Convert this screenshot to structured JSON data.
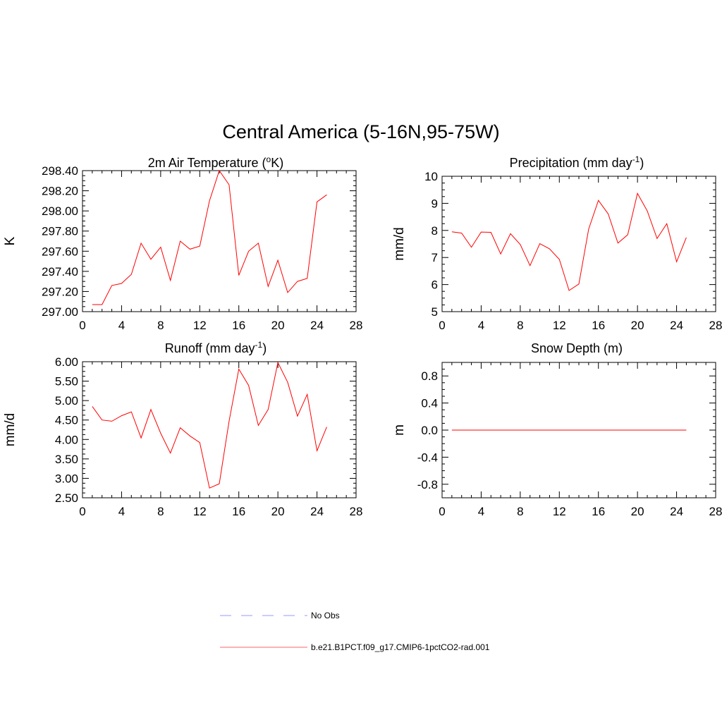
{
  "title": "Central America (5-16N,95-75W)",
  "legend": [
    {
      "label": "No Obs",
      "color": "#9999ff",
      "dash": true
    },
    {
      "label": "b.e21.B1PCT.f09_g17.CMIP6-1pctCO2-rad.001",
      "color": "#ff6666",
      "dash": false
    }
  ],
  "chart_data": [
    {
      "type": "line",
      "title_text": "2m Air Temperature (",
      "title_sup": "o",
      "title_tail": "K)",
      "ylabel": "K",
      "xlim": [
        0,
        28
      ],
      "ylim": [
        297.0,
        298.4
      ],
      "xticks": [
        "0",
        "4",
        "8",
        "12",
        "16",
        "20",
        "24",
        "28"
      ],
      "yticks": [
        "297.00",
        "297.20",
        "297.40",
        "297.60",
        "297.80",
        "298.00",
        "298.20",
        "298.40"
      ],
      "series": [
        {
          "color": "#ff0000",
          "x": [
            1,
            2,
            3,
            4,
            5,
            6,
            7,
            8,
            9,
            10,
            11,
            12,
            13,
            14,
            15,
            16,
            17,
            18,
            19,
            20,
            21,
            22,
            23,
            24,
            25
          ],
          "values": [
            297.07,
            297.07,
            297.26,
            297.28,
            297.37,
            297.68,
            297.52,
            297.64,
            297.31,
            297.7,
            297.62,
            297.65,
            298.1,
            298.4,
            298.26,
            297.36,
            297.6,
            297.68,
            297.25,
            297.51,
            297.19,
            297.3,
            297.33,
            298.09,
            298.16
          ]
        }
      ]
    },
    {
      "type": "line",
      "title_text": "Precipitation (mm day",
      "title_sup": "-1",
      "title_tail": ")",
      "ylabel": "mm/d",
      "xlim": [
        0,
        28
      ],
      "ylim": [
        5,
        10
      ],
      "xticks": [
        "0",
        "4",
        "8",
        "12",
        "16",
        "20",
        "24",
        "28"
      ],
      "yticks": [
        "5",
        "6",
        "7",
        "8",
        "9",
        "10"
      ],
      "series": [
        {
          "color": "#ff0000",
          "x": [
            1,
            2,
            3,
            4,
            5,
            6,
            7,
            8,
            9,
            10,
            11,
            12,
            13,
            14,
            15,
            16,
            17,
            18,
            19,
            20,
            21,
            22,
            23,
            24,
            25
          ],
          "values": [
            7.95,
            7.9,
            7.38,
            7.94,
            7.93,
            7.13,
            7.88,
            7.48,
            6.7,
            7.51,
            7.32,
            6.93,
            5.78,
            6.02,
            8.05,
            9.11,
            8.61,
            7.53,
            7.84,
            9.37,
            8.72,
            7.7,
            8.25,
            6.84,
            7.74
          ]
        }
      ]
    },
    {
      "type": "line",
      "title_text": "Runoff (mm day",
      "title_sup": "-1",
      "title_tail": ")",
      "ylabel": "mm/d",
      "xlim": [
        0,
        28
      ],
      "ylim": [
        2.5,
        6.0
      ],
      "xticks": [
        "0",
        "4",
        "8",
        "12",
        "16",
        "20",
        "24",
        "28"
      ],
      "yticks": [
        "2.50",
        "3.00",
        "3.50",
        "4.00",
        "4.50",
        "5.00",
        "5.50",
        "6.00"
      ],
      "series": [
        {
          "color": "#ff0000",
          "x": [
            1,
            2,
            3,
            4,
            5,
            6,
            7,
            8,
            9,
            10,
            11,
            12,
            13,
            14,
            15,
            16,
            17,
            18,
            19,
            20,
            21,
            22,
            23,
            24,
            25
          ],
          "values": [
            4.85,
            4.5,
            4.47,
            4.61,
            4.71,
            4.04,
            4.77,
            4.16,
            3.65,
            4.3,
            4.09,
            3.92,
            2.75,
            2.86,
            4.47,
            5.81,
            5.39,
            4.36,
            4.77,
            5.98,
            5.47,
            4.6,
            5.16,
            3.71,
            4.32
          ]
        }
      ]
    },
    {
      "type": "line",
      "title_text": "Snow Depth (m)",
      "title_sup": "",
      "title_tail": "",
      "ylabel": "m",
      "xlim": [
        0,
        28
      ],
      "ylim": [
        -1.0,
        1.0
      ],
      "xticks": [
        "0",
        "4",
        "8",
        "12",
        "16",
        "20",
        "24",
        "28"
      ],
      "yticks": [
        "-0.8",
        "-0.4",
        "0.0",
        "0.4",
        "0.8"
      ],
      "ytick_values": [
        -0.8,
        -0.4,
        0.0,
        0.4,
        0.8
      ],
      "series": [
        {
          "color": "#ff0000",
          "x": [
            1,
            2,
            3,
            4,
            5,
            6,
            7,
            8,
            9,
            10,
            11,
            12,
            13,
            14,
            15,
            16,
            17,
            18,
            19,
            20,
            21,
            22,
            23,
            24,
            25
          ],
          "values": [
            0,
            0,
            0,
            0,
            0,
            0,
            0,
            0,
            0,
            0,
            0,
            0,
            0,
            0,
            0,
            0,
            0,
            0,
            0,
            0,
            0,
            0,
            0,
            0,
            0
          ]
        }
      ]
    }
  ]
}
